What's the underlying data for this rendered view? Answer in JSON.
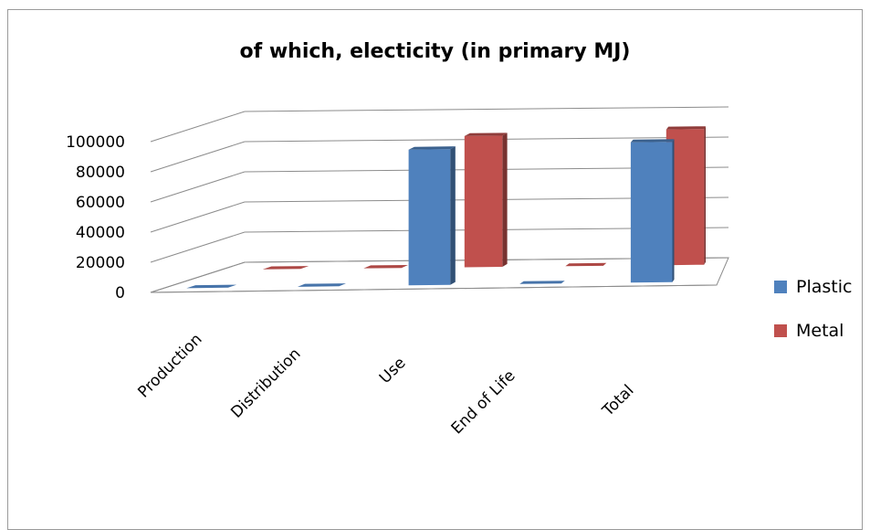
{
  "chart_data": {
    "type": "bar",
    "title": "of which, electicity (in primary MJ)",
    "categories": [
      "Production",
      "Distribution",
      "Use",
      "End of Life",
      "Total"
    ],
    "series": [
      {
        "name": "Plastic",
        "color": "#4f81bd",
        "values": [
          0,
          0,
          90000,
          0,
          93000
        ]
      },
      {
        "name": "Metal",
        "color": "#c0504d",
        "values": [
          0,
          0,
          87000,
          0,
          90000
        ]
      }
    ],
    "y_ticks": [
      "0",
      "20000",
      "40000",
      "60000",
      "80000",
      "100000"
    ],
    "ylim": [
      0,
      100000
    ],
    "grid": true,
    "legend": "right"
  }
}
